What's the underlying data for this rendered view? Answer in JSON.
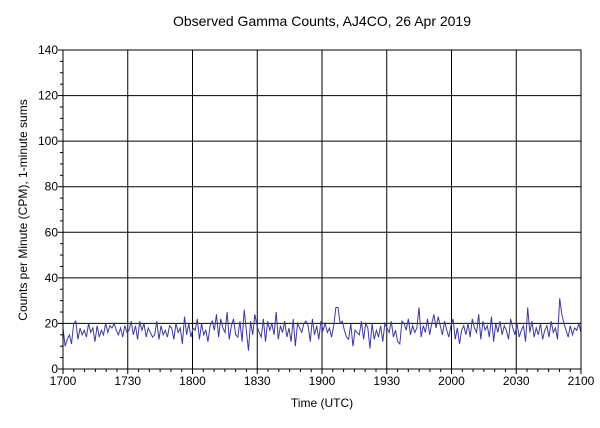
{
  "chart_data": {
    "type": "line",
    "title": "Observed Gamma Counts, AJ4CO, 26 Apr 2019",
    "xlabel": "Time (UTC)",
    "ylabel": "Counts per Minute (CPM), 1-minute sums",
    "x_tick_labels": [
      "1700",
      "1730",
      "1800",
      "1830",
      "1900",
      "1930",
      "2000",
      "2030",
      "2100"
    ],
    "y_ticks": [
      0,
      20,
      40,
      60,
      80,
      100,
      120,
      140
    ],
    "x_range_minutes": [
      0,
      240
    ],
    "ylim": [
      0,
      140
    ],
    "grid": true,
    "series": [
      {
        "color": "#3a3aa0",
        "values": [
          18,
          10,
          13,
          15,
          11,
          20,
          21,
          13,
          18,
          15,
          17,
          14,
          20,
          16,
          18,
          12,
          19,
          14,
          17,
          15,
          20,
          16,
          19,
          18,
          20,
          17,
          15,
          18,
          14,
          19,
          16,
          17,
          21,
          15,
          19,
          13,
          21,
          17,
          20,
          14,
          18,
          16,
          14,
          15,
          21,
          13,
          19,
          15,
          17,
          14,
          19,
          18,
          13,
          20,
          16,
          18,
          11,
          23,
          15,
          20,
          14,
          18,
          17,
          22,
          13,
          20,
          15,
          17,
          12,
          19,
          21,
          17,
          24,
          14,
          22,
          18,
          16,
          25,
          13,
          19,
          22,
          15,
          14,
          21,
          12,
          26,
          17,
          8,
          21,
          15,
          24,
          19,
          16,
          14,
          22,
          12,
          21,
          17,
          20,
          15,
          25,
          13,
          19,
          16,
          21,
          14,
          18,
          12,
          22,
          10,
          20,
          18,
          16,
          20,
          21,
          19,
          12,
          22,
          15,
          19,
          13,
          21,
          17,
          20,
          16,
          18,
          14,
          19,
          27,
          27,
          20,
          21,
          17,
          14,
          13,
          20,
          10,
          17,
          16,
          15,
          21,
          13,
          20,
          18,
          9,
          20,
          13,
          17,
          14,
          19,
          12,
          20,
          18,
          16,
          21,
          14,
          17,
          12,
          11,
          21,
          20,
          17,
          22,
          15,
          19,
          16,
          18,
          27,
          14,
          19,
          16,
          22,
          15,
          20,
          24,
          18,
          23,
          19,
          15,
          21,
          17,
          14,
          19,
          22,
          13,
          18,
          11,
          17,
          19,
          15,
          20,
          14,
          22,
          18,
          16,
          24,
          13,
          21,
          17,
          19,
          14,
          23,
          12,
          20,
          16,
          21,
          15,
          19,
          17,
          13,
          22,
          18,
          15,
          20,
          14,
          17,
          19,
          12,
          27,
          16,
          21,
          14,
          18,
          15,
          20,
          13,
          17,
          19,
          14,
          21,
          16,
          18,
          13,
          31,
          24,
          20,
          17,
          14,
          19,
          15,
          18,
          17,
          20,
          16
        ]
      }
    ]
  }
}
